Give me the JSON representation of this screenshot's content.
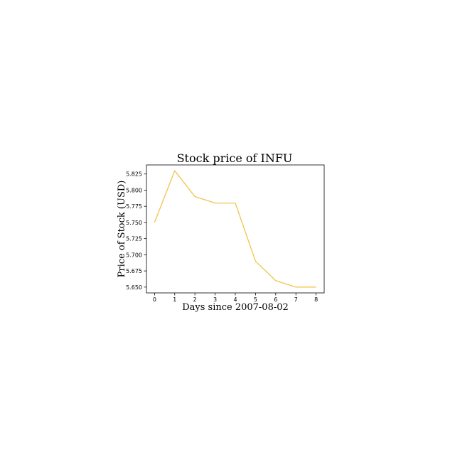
{
  "chart_data": {
    "type": "line",
    "title": "Stock price of INFU",
    "xlabel": "Days since 2007-08-02",
    "ylabel": "Price of Stock (USD)",
    "x": [
      0,
      1,
      2,
      3,
      4,
      5,
      6,
      7,
      8
    ],
    "series": [
      {
        "values": [
          5.75,
          5.83,
          5.79,
          5.78,
          5.78,
          5.69,
          5.66,
          5.65,
          5.65
        ],
        "color": "#f0c34b"
      }
    ],
    "xticks": [
      "0",
      "1",
      "2",
      "3",
      "4",
      "5",
      "6",
      "7",
      "8"
    ],
    "yticks": [
      "5.650",
      "5.675",
      "5.700",
      "5.725",
      "5.750",
      "5.775",
      "5.800",
      "5.825"
    ],
    "xlim": [
      -0.4,
      8.4
    ],
    "ylim": [
      5.641,
      5.839
    ],
    "grid": false
  }
}
